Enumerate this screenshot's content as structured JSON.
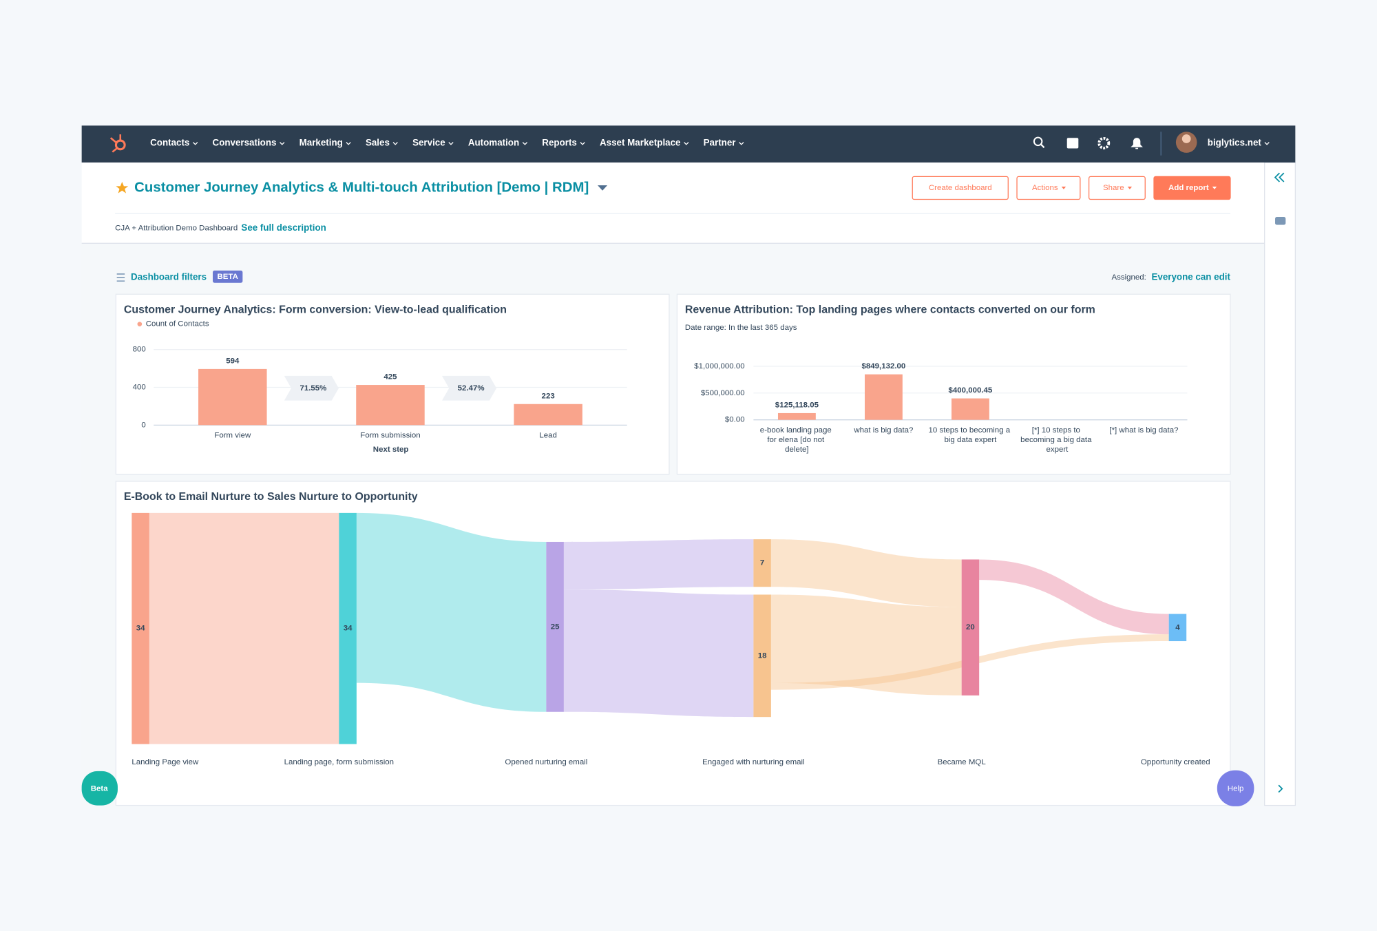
{
  "nav": {
    "items": [
      "Contacts",
      "Conversations",
      "Marketing",
      "Sales",
      "Service",
      "Automation",
      "Reports",
      "Asset Marketplace",
      "Partner"
    ],
    "account": "biglytics.net"
  },
  "header": {
    "title": "Customer Journey Analytics & Multi-touch Attribution [Demo | RDM]",
    "buttons": [
      "Create dashboard",
      "Actions",
      "Share",
      "Add report"
    ],
    "description": "CJA + Attribution Demo Dashboard",
    "description_link": "See full description"
  },
  "filters": {
    "label": "Dashboard filters",
    "badge": "BETA",
    "assigned_label": "Assigned:",
    "assigned_value": "Everyone can edit"
  },
  "widgets": {
    "beta": "Beta",
    "help": "Help"
  },
  "chart_data": [
    {
      "type": "bar",
      "title": "Customer Journey Analytics: Form conversion: View-to-lead qualification",
      "categories": [
        "Form view",
        "Form submission",
        "Lead"
      ],
      "series": [
        {
          "name": "Count of Contacts",
          "color": "#f9a48c",
          "values": [
            594,
            425,
            223
          ]
        }
      ],
      "xlabel": "Next step",
      "ylim": [
        0,
        800
      ],
      "yticks": [
        0,
        400,
        800
      ],
      "grid": true,
      "conversion_rates": {
        "values": [
          71.55,
          52.47
        ],
        "value_labels": [
          "71.55%",
          "52.47%"
        ]
      }
    },
    {
      "type": "bar",
      "title": "Revenue Attribution: Top landing pages where contacts converted on our form",
      "subtitle": "Date range: In the last 365 days",
      "categories": [
        "e-book landing page for elena [do not delete]",
        "what is big data?",
        "10 steps to becoming a big data expert",
        "[*] 10 steps to becoming a big data expert",
        "[*] what is big data?"
      ],
      "series": [
        {
          "color": "#f9a48c",
          "values": [
            125118.05,
            849132.0,
            400000.45,
            0,
            0
          ],
          "value_labels": [
            "$125,118.05",
            "$849,132.00",
            "$400,000.45",
            null,
            null
          ]
        }
      ],
      "ylim": [
        0,
        1000000
      ],
      "yticks": [
        {
          "value": 0,
          "label": "$0.00"
        },
        {
          "value": 500000,
          "label": "$500,000.00"
        },
        {
          "value": 1000000,
          "label": "$1,000,000.00"
        }
      ],
      "grid": true
    },
    {
      "type": "sankey",
      "title": "E-Book to Email Nurture to Sales Nurture to Opportunity",
      "stages": [
        "Landing Page view",
        "Landing page, form submission",
        "Opened nurturing email",
        "Engaged with nurturing email",
        "Became MQL",
        "Opportunity created"
      ],
      "nodes": [
        {
          "stage": 0,
          "value": 34,
          "color": "#f9a48c"
        },
        {
          "stage": 1,
          "value": 34,
          "color": "#4fd2d8"
        },
        {
          "stage": 2,
          "value": 25,
          "color": "#b9a4e6"
        },
        {
          "stage": 3,
          "value": 7,
          "color": "#f7c48f"
        },
        {
          "stage": 3,
          "value": 18,
          "color": "#f7c48f"
        },
        {
          "stage": 4,
          "value": 20,
          "color": "#e8849f"
        },
        {
          "stage": 5,
          "value": 4,
          "color": "#6cbdf6"
        }
      ],
      "links": [
        {
          "source": 0,
          "target": 1,
          "value": 34
        },
        {
          "source": 1,
          "target": 2,
          "value": 25
        },
        {
          "source": 2,
          "target": 3,
          "value": 7
        },
        {
          "source": 2,
          "target": 4,
          "value": 18
        },
        {
          "source": 3,
          "target": 5,
          "value": 7
        },
        {
          "source": 4,
          "target": 5,
          "value": 13
        },
        {
          "source": 5,
          "target": 6,
          "value": 3
        },
        {
          "source": 4,
          "target": 6,
          "value": 1
        }
      ]
    }
  ]
}
